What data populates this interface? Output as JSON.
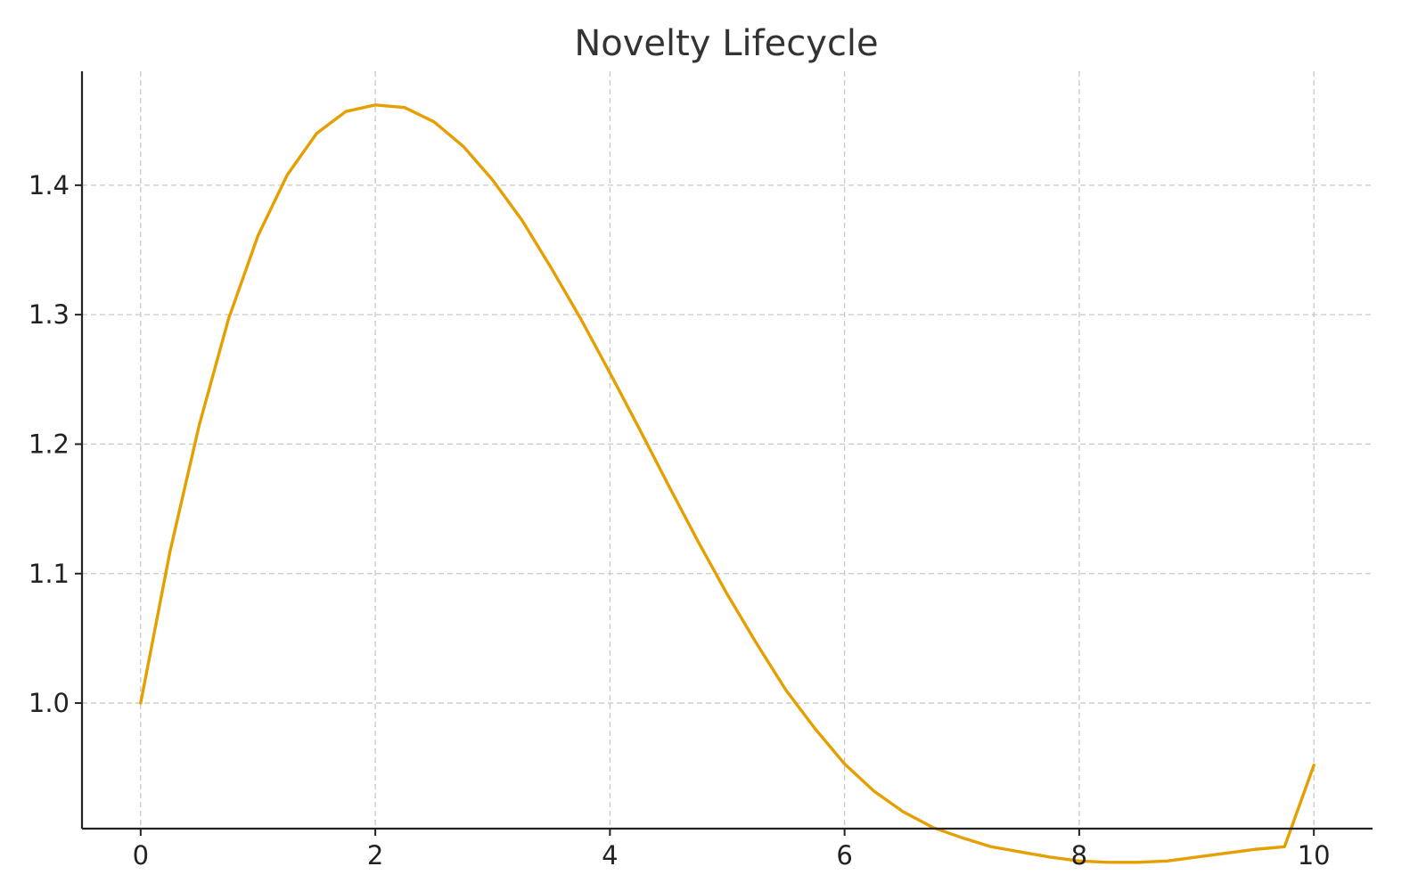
{
  "chart_data": {
    "type": "line",
    "title": "Novelty Lifecycle",
    "xlabel": "",
    "ylabel": "",
    "xlim": [
      -0.5,
      10.5
    ],
    "ylim": [
      0.903,
      1.488
    ],
    "grid": true,
    "x_ticks": [
      0,
      2,
      4,
      6,
      8,
      10
    ],
    "x_tick_labels": [
      "0",
      "2",
      "4",
      "6",
      "8",
      "10"
    ],
    "y_ticks": [
      1.0,
      1.1,
      1.2,
      1.3,
      1.4
    ],
    "y_tick_labels": [
      "1.0",
      "1.1",
      "1.2",
      "1.3",
      "1.4"
    ],
    "series": [
      {
        "color": "#E69F00",
        "x": [
          0,
          0.25,
          0.5,
          0.75,
          1.0,
          1.25,
          1.5,
          1.75,
          2.0,
          2.25,
          2.5,
          2.75,
          3.0,
          3.25,
          3.5,
          3.75,
          4.0,
          4.25,
          4.5,
          4.75,
          5.0,
          5.25,
          5.5,
          5.75,
          6.0,
          6.25,
          6.5,
          6.75,
          7.0,
          7.25,
          7.5,
          7.75,
          8.0,
          8.25,
          8.5,
          8.75,
          9.0,
          9.25,
          9.5,
          9.75,
          10.0
        ],
        "y": [
          1.0,
          1.117,
          1.215,
          1.297,
          1.361,
          1.408,
          1.44,
          1.457,
          1.462,
          1.46,
          1.449,
          1.43,
          1.404,
          1.373,
          1.336,
          1.297,
          1.255,
          1.212,
          1.168,
          1.125,
          1.084,
          1.046,
          1.01,
          0.98,
          0.953,
          0.932,
          0.916,
          0.904,
          0.896,
          0.889,
          0.885,
          0.881,
          0.878,
          0.877,
          0.877,
          0.878,
          0.881,
          0.884,
          0.887,
          0.889,
          0.952
        ]
      }
    ]
  }
}
